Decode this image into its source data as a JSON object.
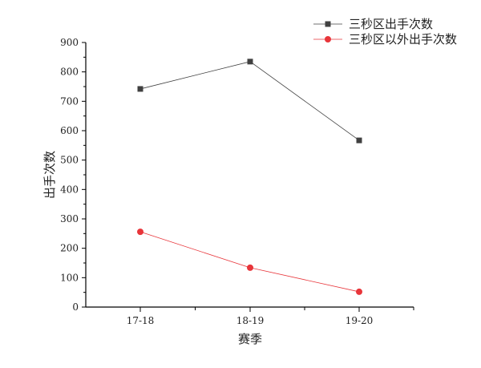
{
  "chart_data": {
    "type": "line",
    "title": "",
    "xlabel": "赛季",
    "ylabel": "出手次数",
    "categories": [
      "17-18",
      "18-19",
      "19-20"
    ],
    "series": [
      {
        "name": "三秒区出手次数",
        "values": [
          742,
          835,
          567
        ],
        "color": "#404040",
        "marker": "square"
      },
      {
        "name": "三秒区以外出手次数",
        "values": [
          256,
          134,
          52
        ],
        "color": "#e8353a",
        "marker": "circle"
      }
    ],
    "ylim": [
      0,
      900
    ],
    "yticks": [
      0,
      100,
      200,
      300,
      400,
      500,
      600,
      700,
      800,
      900
    ],
    "grid": false,
    "legend_position": "top-right"
  }
}
